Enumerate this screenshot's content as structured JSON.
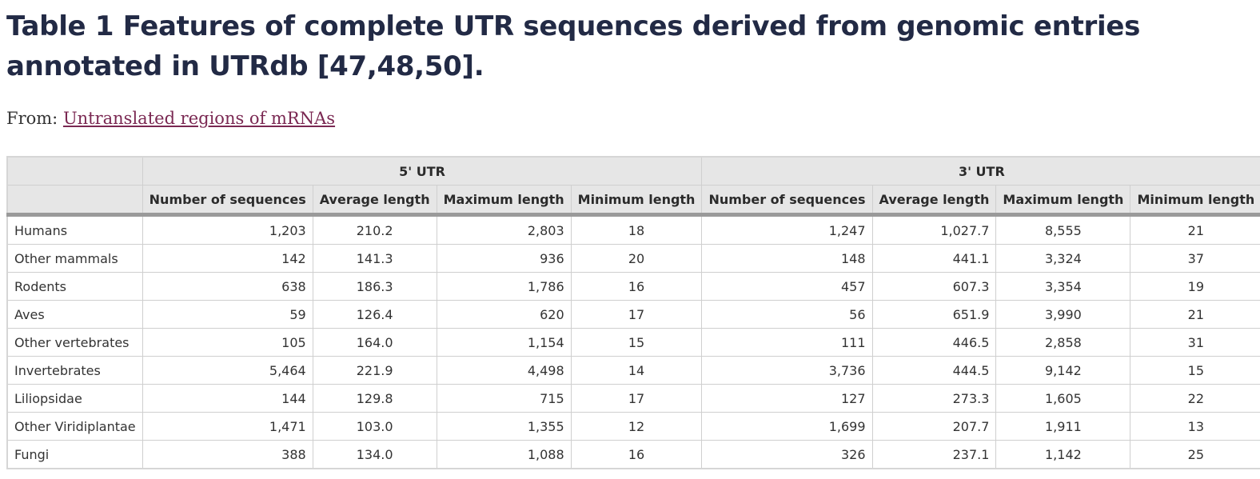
{
  "title": "Table 1 Features of complete UTR sequences derived from genomic entries annotated in UTRdb [47,48,50].",
  "from_label": "From:",
  "from_link": "Untranslated regions of mRNAs",
  "table": {
    "group_headers": [
      "5' UTR",
      "3' UTR"
    ],
    "sub_headers": [
      "Number of sequences",
      "Average length",
      "Maximum length",
      "Minimum length",
      "Number of sequences",
      "Average length",
      "Maximum length",
      "Minimum length"
    ],
    "rows": [
      {
        "label": "Humans",
        "cells": [
          "1,203",
          "210.2",
          "2,803",
          "18",
          "1,247",
          "1,027.7",
          "8,555",
          "21"
        ]
      },
      {
        "label": "Other mammals",
        "cells": [
          "142",
          "141.3",
          "936",
          "20",
          "148",
          "441.1",
          "3,324",
          "37"
        ]
      },
      {
        "label": "Rodents",
        "cells": [
          "638",
          "186.3",
          "1,786",
          "16",
          "457",
          "607.3",
          "3,354",
          "19"
        ]
      },
      {
        "label": "Aves",
        "cells": [
          "59",
          "126.4",
          "620",
          "17",
          "56",
          "651.9",
          "3,990",
          "21"
        ]
      },
      {
        "label": "Other vertebrates",
        "cells": [
          "105",
          "164.0",
          "1,154",
          "15",
          "111",
          "446.5",
          "2,858",
          "31"
        ]
      },
      {
        "label": "Invertebrates",
        "cells": [
          "5,464",
          "221.9",
          "4,498",
          "14",
          "3,736",
          "444.5",
          "9,142",
          "15"
        ]
      },
      {
        "label": "Liliopsidae",
        "cells": [
          "144",
          "129.8",
          "715",
          "17",
          "127",
          "273.3",
          "1,605",
          "22"
        ]
      },
      {
        "label": "Other Viridiplantae",
        "cells": [
          "1,471",
          "103.0",
          "1,355",
          "12",
          "1,699",
          "207.7",
          "1,911",
          "13"
        ]
      },
      {
        "label": "Fungi",
        "cells": [
          "388",
          "134.0",
          "1,088",
          "16",
          "326",
          "237.1",
          "1,142",
          "25"
        ]
      }
    ]
  }
}
